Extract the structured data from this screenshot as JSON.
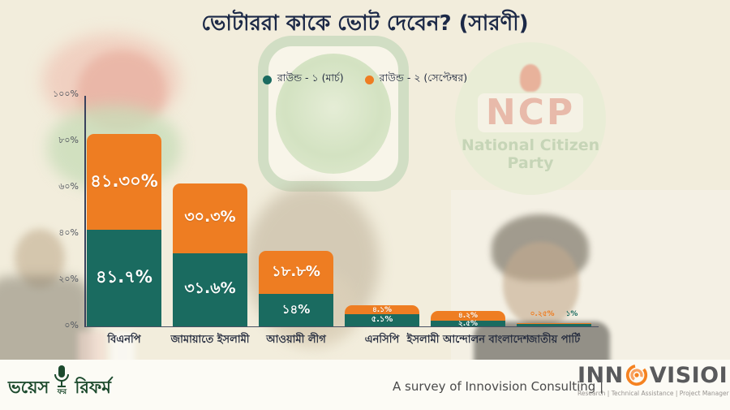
{
  "title": "ভোটাররা কাকে ভোট দেবেন? (সারণী)",
  "legend": [
    {
      "label": "রাউন্ড - ১ (মার্চ)",
      "color": "#1a6b60"
    },
    {
      "label": "রাউন্ড - ২ (সেপ্টেম্বর)",
      "color": "#ee7d22"
    }
  ],
  "chart_data": {
    "type": "bar",
    "stacked": true,
    "title": "ভোটাররা কাকে ভোট দেবেন? (সারণী)",
    "categories": [
      "বিএনপি",
      "জামায়াতে ইসলামী",
      "আওয়ামী লীগ",
      "এনসিপি",
      "ইসলামী আন্দোলন বাংলাদেশ",
      "জাতীয় পার্টি"
    ],
    "series": [
      {
        "name": "রাউন্ড - ১ (মার্চ)",
        "color": "#1a6b60",
        "values": [
          41.7,
          31.6,
          14,
          5.1,
          2.5,
          1
        ],
        "labels": [
          "৪১.৭%",
          "৩১.৬%",
          "১৪%",
          "৫.১%",
          "২.৫%",
          "১%"
        ]
      },
      {
        "name": "রাউন্ড - ২ (সেপ্টেম্বর)",
        "color": "#ee7d22",
        "values": [
          41.3,
          30.3,
          18.8,
          4.1,
          4.2,
          0.25
        ],
        "labels": [
          "৪১.৩০%",
          "৩০.৩%",
          "১৮.৮%",
          "৪.১%",
          "৪.২%",
          "০.২৫%"
        ]
      }
    ],
    "y_ticks": [
      {
        "value": 100,
        "label": "১০০%"
      },
      {
        "value": 80,
        "label": "৮০%"
      },
      {
        "value": 60,
        "label": "৬০%"
      },
      {
        "value": 40,
        "label": "৪০%"
      },
      {
        "value": 20,
        "label": "২০%"
      },
      {
        "value": 0,
        "label": "০%"
      }
    ],
    "ylim": [
      0,
      100
    ],
    "grid": false,
    "legend_position": "top-center"
  },
  "watermarks": {
    "ncp_acronym": "NCP",
    "ncp_name": "National Citizen Party"
  },
  "footer": {
    "survey_text": "A survey of Innovision Consulting |",
    "vfr_word1": "ভয়েস",
    "vfr_word2": "ফর",
    "vfr_word3": "রিফর্ম",
    "innovision_part1": "INN",
    "innovision_part2": "VISIOI",
    "innovision_tagline": "Research  |  Technical Assistance  |  Project Manager"
  }
}
